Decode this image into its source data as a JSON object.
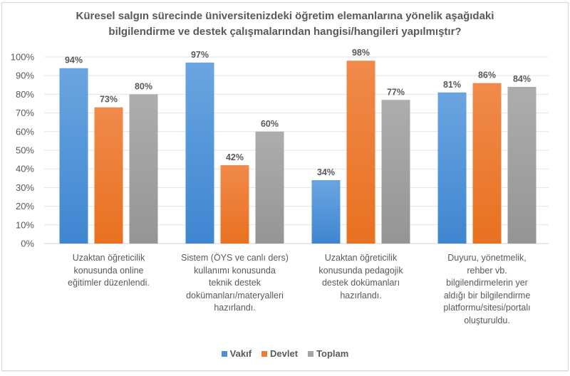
{
  "chart_data": {
    "type": "bar",
    "title": "Küresel salgın sürecinde üniversitenizdeki öğretim elemanlarına yönelik aşağıdaki bilgilendirme ve destek çalışmalarından hangisi/hangileri yapılmıştır?",
    "title_lines": [
      "Küresel salgın sürecinde üniversitenizdeki öğretim elemanlarına yönelik aşağıdaki",
      "bilgilendirme ve destek çalışmalarından hangisi/hangileri yapılmıştır?"
    ],
    "xlabel": "",
    "ylabel": "",
    "ylim": [
      0,
      100
    ],
    "yticks": [
      "0%",
      "10%",
      "20%",
      "30%",
      "40%",
      "50%",
      "60%",
      "70%",
      "80%",
      "90%",
      "100%"
    ],
    "grid": true,
    "legend_position": "bottom",
    "categories": [
      [
        "Uzaktan öğreticilik",
        "konusunda online",
        "eğitimler düzenlendi."
      ],
      [
        "Sistem (ÖYS ve canlı ders)",
        "kullanımı konusunda",
        "teknik destek",
        "dokümanları/materyalleri",
        "hazırlandı."
      ],
      [
        "Uzaktan öğreticilik",
        "konusunda pedagojik",
        "destek dokümanları",
        "hazırlandı."
      ],
      [
        "Duyuru, yönetmelik,",
        "rehber vb.",
        "bilgilendirmelerin yer",
        "aldığı bir bilgilendirme",
        "platformu/sitesi/portalı",
        "oluşturuldu."
      ]
    ],
    "series": [
      {
        "name": "Vakıf",
        "color": "#4a90d9",
        "values": [
          94,
          97,
          34,
          81
        ],
        "labels": [
          "94%",
          "97%",
          "34%",
          "81%"
        ]
      },
      {
        "name": "Devlet",
        "color": "#ed7d31",
        "values": [
          73,
          42,
          98,
          86
        ],
        "labels": [
          "73%",
          "42%",
          "98%",
          "86%"
        ]
      },
      {
        "name": "Toplam",
        "color": "#a5a5a5",
        "values": [
          80,
          60,
          77,
          84
        ],
        "labels": [
          "80%",
          "60%",
          "77%",
          "84%"
        ]
      }
    ]
  }
}
